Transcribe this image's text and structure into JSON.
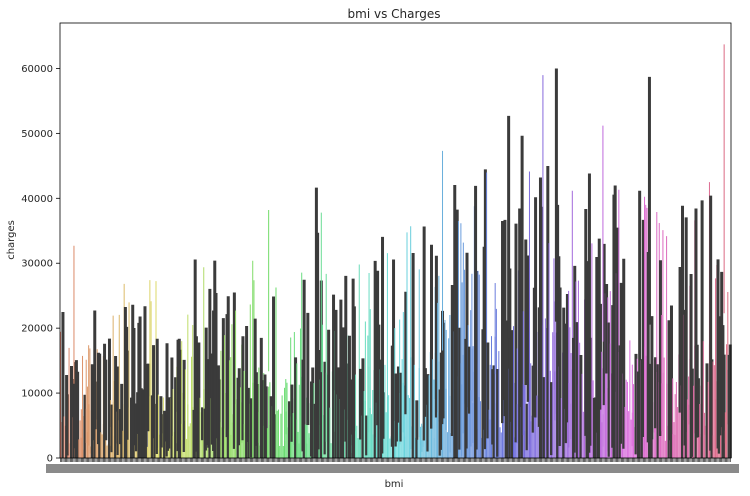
{
  "chart_data": {
    "type": "bar",
    "title": "bmi vs Charges",
    "xlabel": "bmi",
    "ylabel": "charges",
    "ylim": [
      0,
      67000
    ],
    "yticks": [
      0,
      10000,
      20000,
      30000,
      40000,
      50000,
      60000
    ],
    "x_tick_labels_illegible": true,
    "num_categories": 548,
    "palette": "husl",
    "error_bar_color": "#3b3b3b",
    "grid": false,
    "legend": "none",
    "anchors": {
      "description": "Approximate mean-charge envelope across sorted bmi categories (0 = lowest bmi, 1 = highest)",
      "points": [
        [
          0.0,
          7000
        ],
        [
          0.15,
          9000
        ],
        [
          0.3,
          11000
        ],
        [
          0.45,
          13000
        ],
        [
          0.55,
          17000
        ],
        [
          0.7,
          20000
        ],
        [
          0.85,
          18000
        ],
        [
          1.0,
          16000
        ]
      ]
    },
    "peak_bars": [
      {
        "category_rank": 0.02,
        "value": 32700
      },
      {
        "category_rank": 0.31,
        "value": 38200
      },
      {
        "category_rank": 0.39,
        "value": 37800
      },
      {
        "category_rank": 0.57,
        "value": 47300
      },
      {
        "category_rank": 0.67,
        "value": 52700
      },
      {
        "category_rank": 0.74,
        "value": 60000
      },
      {
        "category_rank": 0.81,
        "value": 51200
      },
      {
        "category_rank": 0.88,
        "value": 58700
      },
      {
        "category_rank": 0.99,
        "value": 63700
      }
    ]
  }
}
